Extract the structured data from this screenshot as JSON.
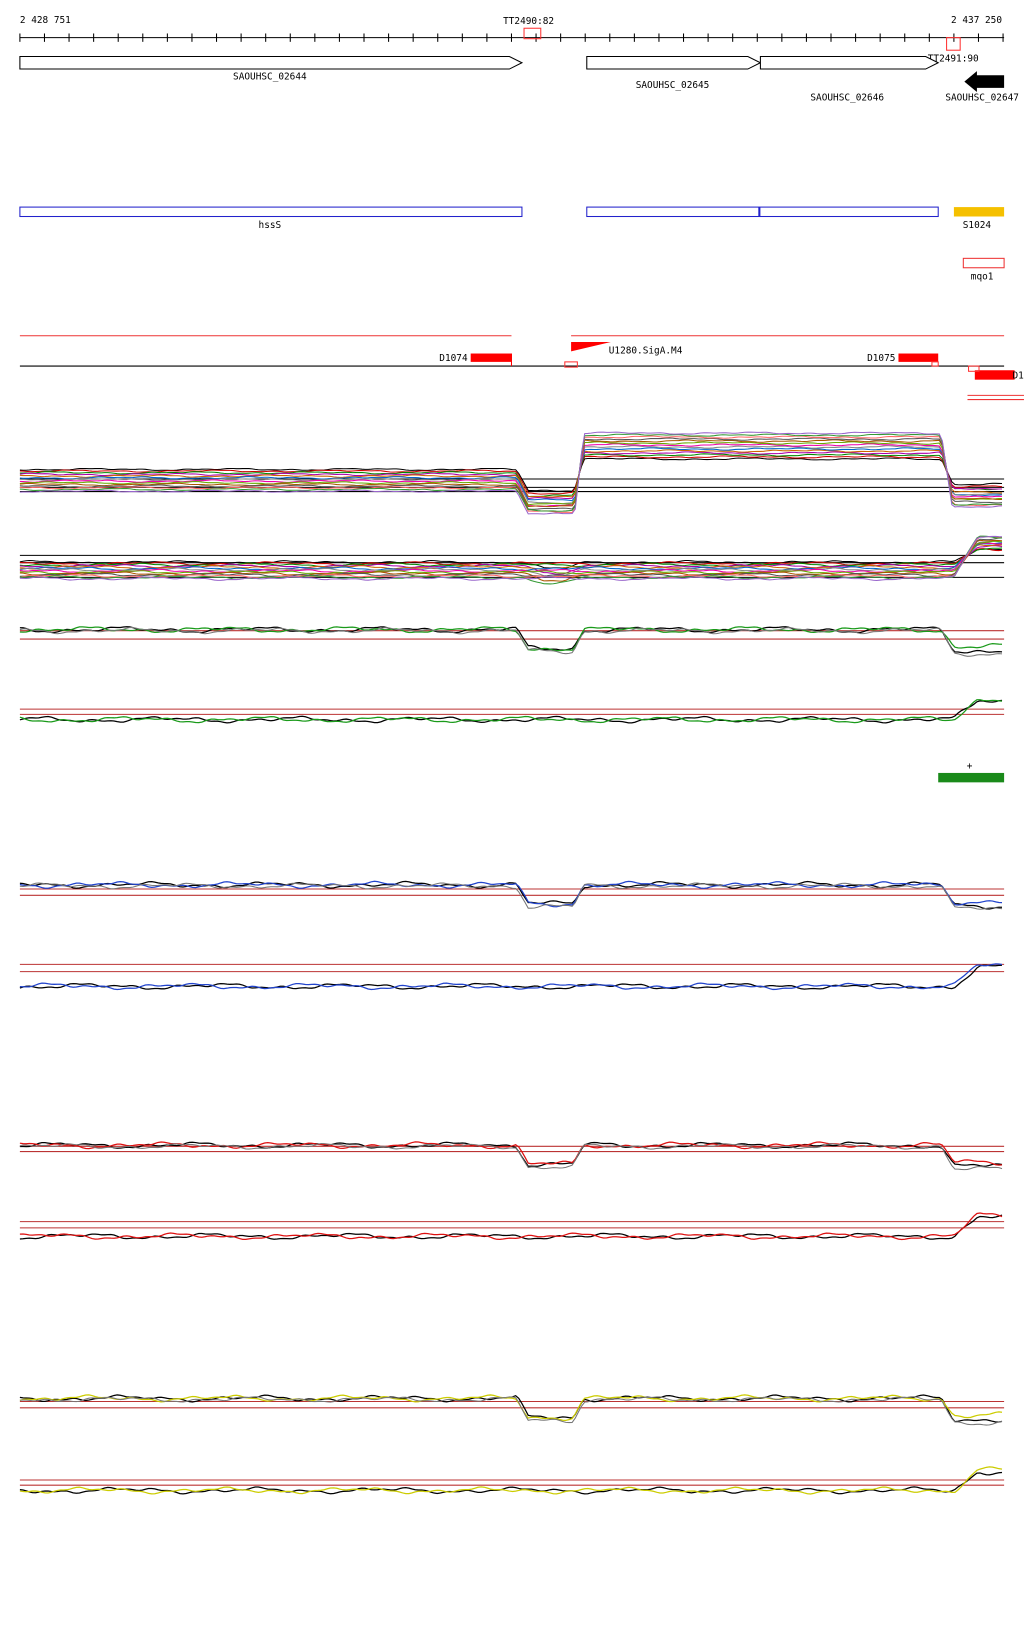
{
  "ruler": {
    "start": "2 428 751",
    "end": "2 437 250"
  },
  "terminators": [
    "TT2490:82",
    "TT2491:90"
  ],
  "genes": [
    "SAOUHSC_02644",
    "SAOUHSC_02645",
    "SAOUHSC_02646",
    "SAOUHSC_02647"
  ],
  "operons": [
    "hssS",
    "S1024",
    "mqo1"
  ],
  "promoters": [
    "D1074",
    "U1280.SigA.M4",
    "D1075",
    "D1"
  ],
  "strand_marker": "+"
}
